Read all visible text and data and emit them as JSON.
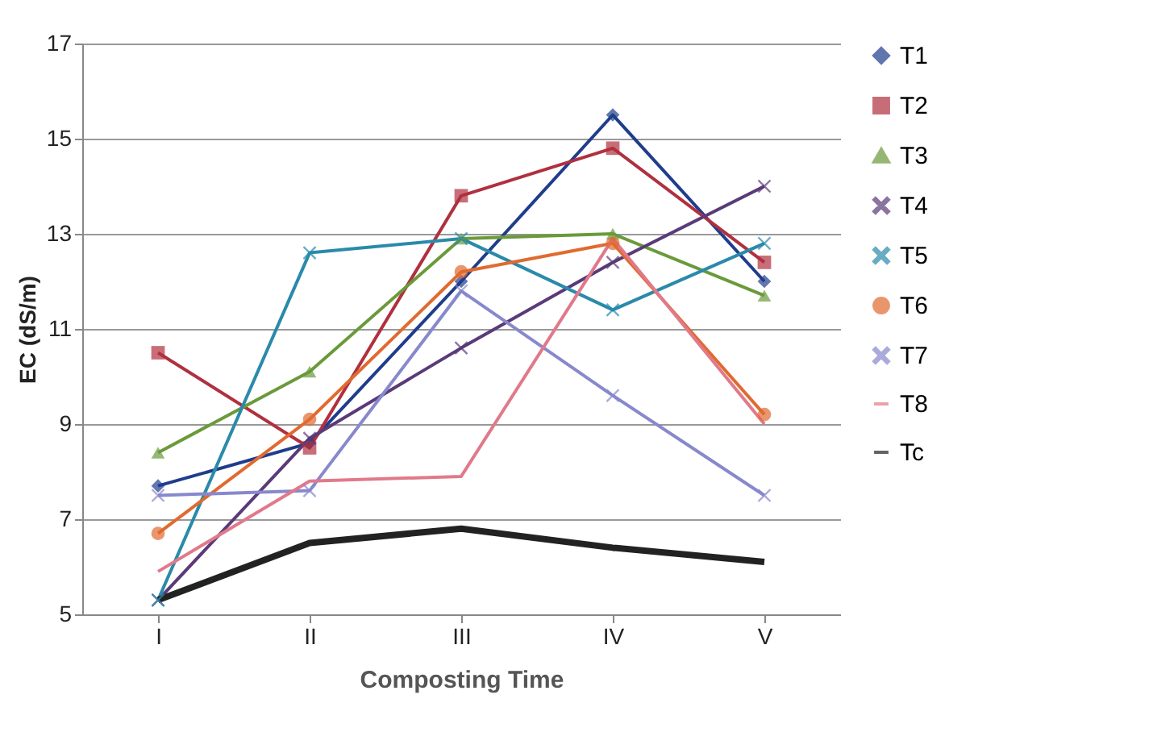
{
  "chart_data": {
    "type": "line",
    "xlabel": "Composting Time",
    "ylabel": "EC (dS/m)",
    "categories": [
      "I",
      "II",
      "III",
      "IV",
      "V"
    ],
    "ylim": [
      5,
      17
    ],
    "yticks": [
      5,
      7,
      9,
      11,
      13,
      15,
      17
    ],
    "grid": "y",
    "legend": "right",
    "series": [
      {
        "name": "T1",
        "color": "#1f3d8c",
        "marker": "diamond",
        "values": [
          7.7,
          8.6,
          12.0,
          15.5,
          12.0
        ]
      },
      {
        "name": "T2",
        "color": "#b03040",
        "marker": "square",
        "values": [
          10.5,
          8.5,
          13.8,
          14.8,
          12.4
        ]
      },
      {
        "name": "T3",
        "color": "#6a9a3a",
        "marker": "triangle",
        "values": [
          8.4,
          10.1,
          12.9,
          13.0,
          11.7
        ]
      },
      {
        "name": "T4",
        "color": "#5a3a78",
        "marker": "cross",
        "values": [
          5.3,
          8.7,
          10.6,
          12.4,
          14.0
        ]
      },
      {
        "name": "T5",
        "color": "#2a8aaa",
        "marker": "cross",
        "values": [
          5.3,
          12.6,
          12.9,
          11.4,
          12.8
        ]
      },
      {
        "name": "T6",
        "color": "#e06a30",
        "marker": "circle",
        "values": [
          6.7,
          9.1,
          12.2,
          12.8,
          9.2
        ]
      },
      {
        "name": "T7",
        "color": "#8888cc",
        "marker": "cross",
        "values": [
          7.5,
          7.6,
          11.8,
          9.6,
          7.5
        ]
      },
      {
        "name": "T8",
        "color": "#e07a8a",
        "marker": "none",
        "values": [
          5.9,
          7.8,
          7.9,
          12.9,
          9.0
        ]
      },
      {
        "name": "Tc",
        "color": "#222222",
        "marker": "none",
        "values": [
          5.3,
          6.5,
          6.8,
          6.4,
          6.1
        ]
      }
    ]
  }
}
